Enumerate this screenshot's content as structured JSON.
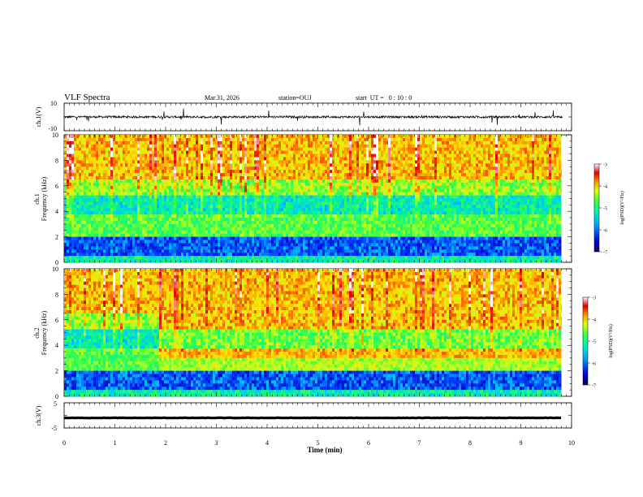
{
  "header": {
    "title": "VLF Spectra",
    "date": "Mar.31, 2026",
    "station": "station=OUJ",
    "start": "start  UT =   0 : 10 : 0"
  },
  "chart_data": [
    {
      "type": "line",
      "id": "ch1-waveform",
      "ylabel": "ch.1(V)",
      "ylim": [
        -10,
        10
      ],
      "yticks": [
        {
          "v": 10,
          "label": "10"
        },
        {
          "v": -10,
          "label": "-10"
        }
      ],
      "xlim": [
        0,
        10
      ],
      "baseline": 0,
      "grid": false
    },
    {
      "type": "heatmap",
      "id": "ch1-spectrogram",
      "ylabel": "Frequency (kHz)",
      "channel_label": "ch.1",
      "ylim": [
        0,
        10
      ],
      "yticks": [
        "0",
        "2",
        "4",
        "6",
        "8",
        "10"
      ],
      "xlim": [
        0,
        9.8
      ],
      "colorbar": {
        "label": "log(PSD)(V²/Hz)",
        "range": [
          -7,
          -3
        ],
        "ticks": [
          "-3",
          "-4",
          "-5",
          "-6",
          "-7"
        ]
      }
    },
    {
      "type": "heatmap",
      "id": "ch2-spectrogram",
      "ylabel": "Frequency (kHz)",
      "channel_label": "ch.2",
      "ylim": [
        0,
        10
      ],
      "yticks": [
        "0",
        "2",
        "4",
        "6",
        "8",
        "10"
      ],
      "xlim": [
        0,
        9.8
      ],
      "colorbar": {
        "label": "log(PSD)(V²/Hz)",
        "range": [
          -7,
          -3
        ],
        "ticks": [
          "-3",
          "-4",
          "-5",
          "-6",
          "-7"
        ]
      }
    },
    {
      "type": "line",
      "id": "ch3-waveform",
      "ylabel": "ch.3(V)",
      "ylim": [
        -5,
        5
      ],
      "yticks": [
        {
          "v": 5,
          "label": "5"
        },
        {
          "v": -5,
          "label": "-5"
        }
      ],
      "xlim": [
        0,
        10
      ],
      "baseline": -1,
      "grid": false
    }
  ],
  "xaxis": {
    "label": "Time (min)",
    "ticks": [
      "0",
      "1",
      "2",
      "3",
      "4",
      "5",
      "6",
      "7",
      "8",
      "9",
      "10"
    ],
    "range": [
      0,
      10
    ]
  },
  "colors": {
    "colormap": [
      "#000060",
      "#0000c0",
      "#0040ff",
      "#00c8ff",
      "#00f0a0",
      "#40ff40",
      "#c0ff20",
      "#ffe000",
      "#ff8000",
      "#e00000",
      "#ffffff"
    ]
  }
}
